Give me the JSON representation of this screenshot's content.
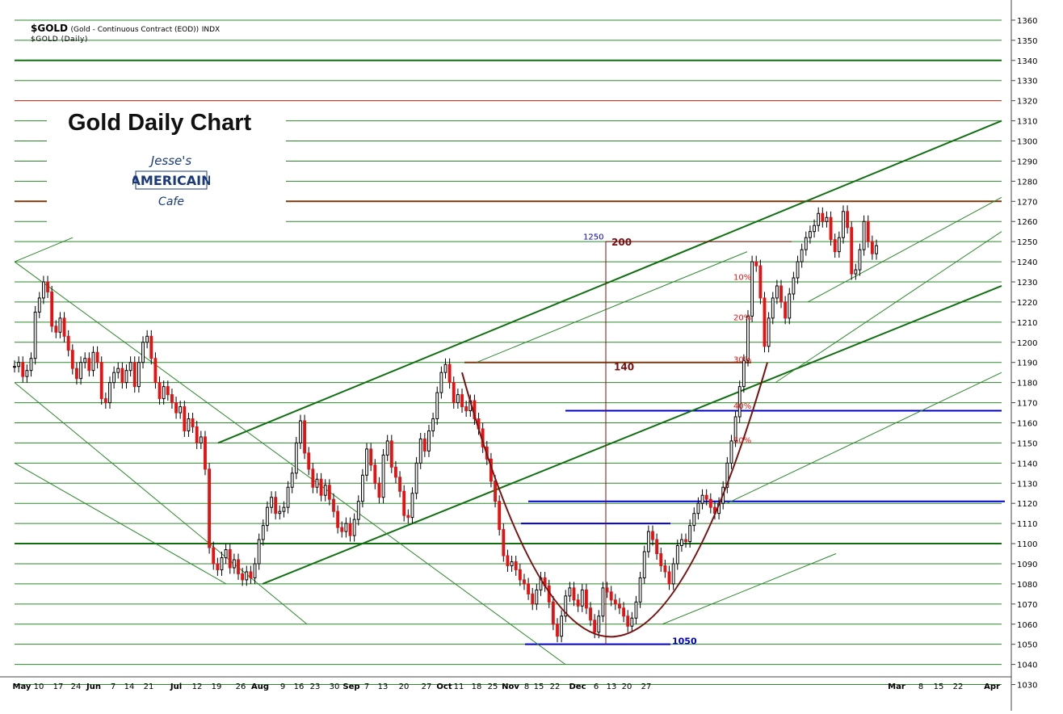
{
  "header": {
    "symbol": "$GOLD",
    "description": "(Gold - Continuous Contract (EOD))",
    "exchange": "INDX",
    "subtitle": "$GOLD (Daily)"
  },
  "overlay": {
    "title": "Gold Daily Chart",
    "logo": {
      "line1": "Jesse's",
      "line2": "AMERICAIN",
      "line3": "Cafe"
    }
  },
  "colors": {
    "up": "#000000",
    "down": "#e81010",
    "trend": "#107010",
    "thin_trend": "#2a8a2a",
    "support": "#0000cc",
    "resistance": "#c83232",
    "brown": "#7a3a10",
    "cup": "#7a1010"
  },
  "chart_data": {
    "type": "candlestick",
    "title": "Gold Daily Chart",
    "ylim": [
      1025,
      1366
    ],
    "y_ticks": [
      1030,
      1040,
      1050,
      1060,
      1070,
      1080,
      1090,
      1100,
      1110,
      1120,
      1130,
      1140,
      1150,
      1160,
      1170,
      1180,
      1190,
      1200,
      1210,
      1220,
      1230,
      1240,
      1250,
      1260,
      1270,
      1280,
      1290,
      1300,
      1310,
      1320,
      1330,
      1340,
      1350,
      1360
    ],
    "x_labels": [
      "May",
      "10",
      "17",
      "24",
      "Jun",
      "7",
      "14",
      "21",
      "Jul",
      "12",
      "19",
      "26",
      "Aug",
      "9",
      "16",
      "23",
      "30",
      "Sep",
      "7",
      "13",
      "20",
      "27",
      "Oct",
      "11",
      "18",
      "25",
      "Nov",
      "8",
      "15",
      "22",
      "Dec",
      "6",
      "13",
      "20",
      "27",
      "Mar",
      "8",
      "15",
      "22",
      "Apr"
    ],
    "closes": [
      1188,
      1190,
      1183,
      1186,
      1192,
      1215,
      1222,
      1230,
      1225,
      1208,
      1205,
      1212,
      1203,
      1196,
      1187,
      1182,
      1190,
      1192,
      1186,
      1195,
      1190,
      1172,
      1170,
      1180,
      1185,
      1187,
      1180,
      1186,
      1190,
      1178,
      1190,
      1200,
      1203,
      1192,
      1180,
      1172,
      1178,
      1174,
      1170,
      1165,
      1168,
      1156,
      1162,
      1158,
      1150,
      1153,
      1137,
      1098,
      1090,
      1087,
      1093,
      1097,
      1088,
      1092,
      1085,
      1082,
      1086,
      1083,
      1090,
      1102,
      1109,
      1118,
      1123,
      1115,
      1116,
      1118,
      1128,
      1135,
      1150,
      1161,
      1145,
      1137,
      1128,
      1132,
      1124,
      1129,
      1122,
      1116,
      1108,
      1106,
      1110,
      1104,
      1112,
      1121,
      1134,
      1147,
      1139,
      1130,
      1123,
      1144,
      1151,
      1138,
      1133,
      1126,
      1114,
      1113,
      1125,
      1140,
      1152,
      1146,
      1156,
      1162,
      1175,
      1185,
      1189,
      1180,
      1170,
      1174,
      1168,
      1166,
      1171,
      1162,
      1157,
      1148,
      1142,
      1131,
      1121,
      1107,
      1094,
      1089,
      1091,
      1087,
      1082,
      1080,
      1075,
      1070,
      1077,
      1083,
      1079,
      1071,
      1060,
      1054,
      1064,
      1074,
      1078,
      1072,
      1069,
      1077,
      1068,
      1062,
      1056,
      1064,
      1078,
      1076,
      1072,
      1070,
      1068,
      1064,
      1059,
      1063,
      1071,
      1083,
      1096,
      1106,
      1102,
      1095,
      1089,
      1086,
      1080,
      1090,
      1099,
      1102,
      1101,
      1109,
      1115,
      1120,
      1124,
      1122,
      1118,
      1115,
      1120,
      1128,
      1140,
      1151,
      1163,
      1178,
      1191,
      1213,
      1240,
      1238,
      1222,
      1198,
      1212,
      1222,
      1228,
      1220,
      1212,
      1224,
      1232,
      1240,
      1246,
      1252,
      1255,
      1258,
      1264,
      1260,
      1262,
      1251,
      1245,
      1252,
      1265,
      1257,
      1234,
      1236,
      1246,
      1260,
      1250,
      1244,
      1248
    ]
  },
  "annotations": {
    "cup_depth": "200",
    "retrace": "140",
    "level_1250": "1250",
    "level_1050": "1050",
    "fib_10": "10%",
    "fib_20": "20%",
    "fib_30": "30%",
    "fib_40": "40%",
    "fib_50": "50%"
  }
}
